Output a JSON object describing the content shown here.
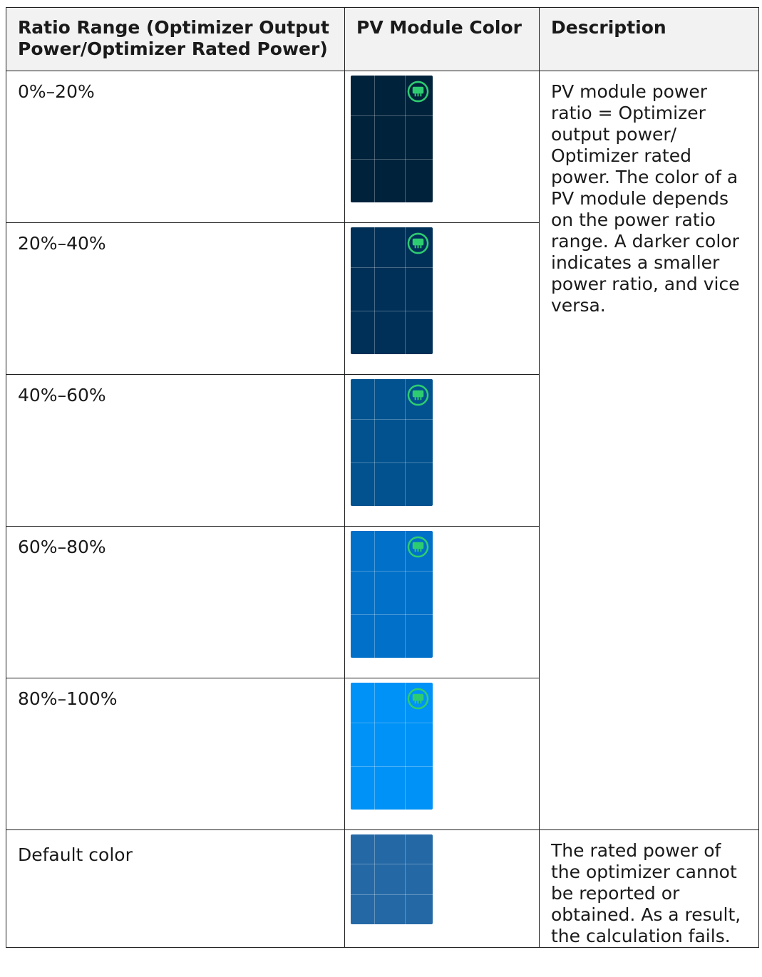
{
  "table": {
    "headers": {
      "ratio": "Ratio Range (Optimizer Output Power/Optimizer Rated Power)",
      "color": "PV Module Color",
      "description": "Description"
    },
    "rows": [
      {
        "ratio": "0%–20%",
        "module_color": "#01223b",
        "has_optimizer_icon": true
      },
      {
        "ratio": "20%–40%",
        "module_color": "#003058",
        "has_optimizer_icon": true
      },
      {
        "ratio": "40%–60%",
        "module_color": "#01528f",
        "has_optimizer_icon": true
      },
      {
        "ratio": "60%–80%",
        "module_color": "#0070c8",
        "has_optimizer_icon": true
      },
      {
        "ratio": "80%–100%",
        "module_color": "#0092f6",
        "has_optimizer_icon": true
      },
      {
        "ratio": "Default color",
        "module_color": "#2469a6",
        "has_optimizer_icon": false
      }
    ],
    "descriptions": {
      "ratio_ranges": "PV module power ratio = Optimizer output power/ Optimizer rated power. The color of a PV module depends on the power ratio range. A darker color indicates a smaller power ratio, and vice versa.",
      "default": "The rated power of the optimizer cannot be reported or obtained. As a result, the calculation fails."
    }
  },
  "icons": {
    "optimizer": "optimizer-icon",
    "optimizer_color": "#2ecc71"
  }
}
